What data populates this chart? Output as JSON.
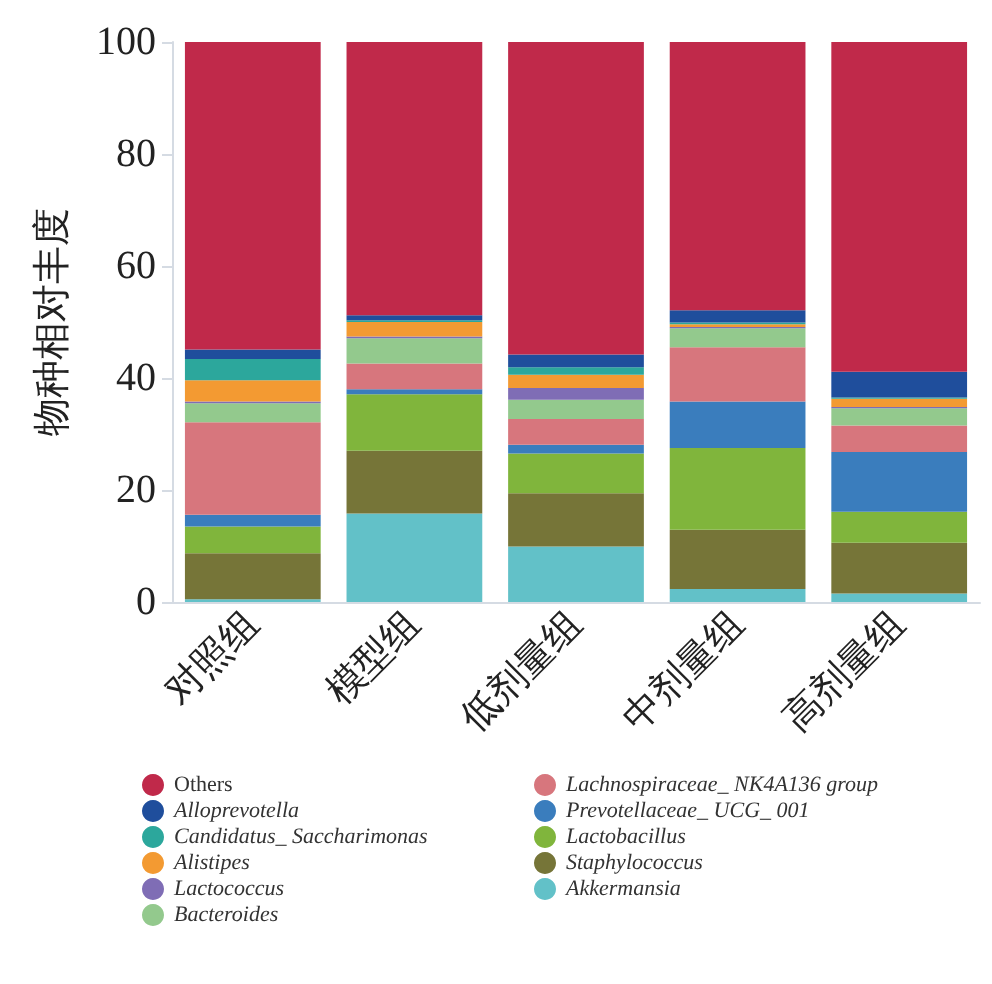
{
  "chart_data": {
    "type": "bar",
    "stacked": true,
    "ylabel": "物种相对丰度",
    "categories": [
      "对照组",
      "模型组",
      "低剂量组",
      "中剂量组",
      "高剂量组"
    ],
    "series": [
      {
        "name": "Akkermansia",
        "color": "#62c1c8",
        "values": [
          0.5,
          15.8,
          9.9,
          2.3,
          1.5
        ]
      },
      {
        "name": "Staphylococcus",
        "color": "#767538",
        "values": [
          8.2,
          11.2,
          9.5,
          10.6,
          9.1
        ]
      },
      {
        "name": "Lactobacillus",
        "color": "#80b53c",
        "values": [
          4.8,
          10.1,
          7.1,
          14.6,
          5.5
        ]
      },
      {
        "name": "Prevotellaceae_ UCG_ 001",
        "color": "#3a7dbd",
        "values": [
          2.1,
          0.9,
          1.6,
          8.3,
          10.7
        ]
      },
      {
        "name": "Lachnospiraceae_ NK4A136 group",
        "color": "#d7767d",
        "values": [
          16.5,
          4.6,
          4.6,
          9.7,
          4.7
        ]
      },
      {
        "name": "Bacteroides",
        "color": "#93c98d",
        "values": [
          3.4,
          4.5,
          3.4,
          3.4,
          3.1
        ]
      },
      {
        "name": "Lactococcus",
        "color": "#7f6db5",
        "values": [
          0.3,
          0.3,
          2.1,
          0.2,
          0.2
        ]
      },
      {
        "name": "Alistipes",
        "color": "#f39a32",
        "values": [
          3.8,
          2.6,
          2.4,
          0.5,
          1.5
        ]
      },
      {
        "name": "Candidatus_ Saccharimonas",
        "color": "#2ca79c",
        "values": [
          3.8,
          0.3,
          1.3,
          0.3,
          0.2
        ]
      },
      {
        "name": "Alloprevotella",
        "color": "#1f4e9c",
        "values": [
          1.7,
          0.9,
          2.3,
          2.2,
          4.6
        ]
      },
      {
        "name": "Others",
        "color": "#c0294a",
        "values": [
          54.9,
          48.8,
          55.8,
          47.9,
          58.9
        ]
      }
    ],
    "ylim": [
      0,
      100
    ],
    "yticks": [
      0,
      20,
      40,
      60,
      80,
      100
    ],
    "grid": false,
    "legend": "bottom"
  }
}
